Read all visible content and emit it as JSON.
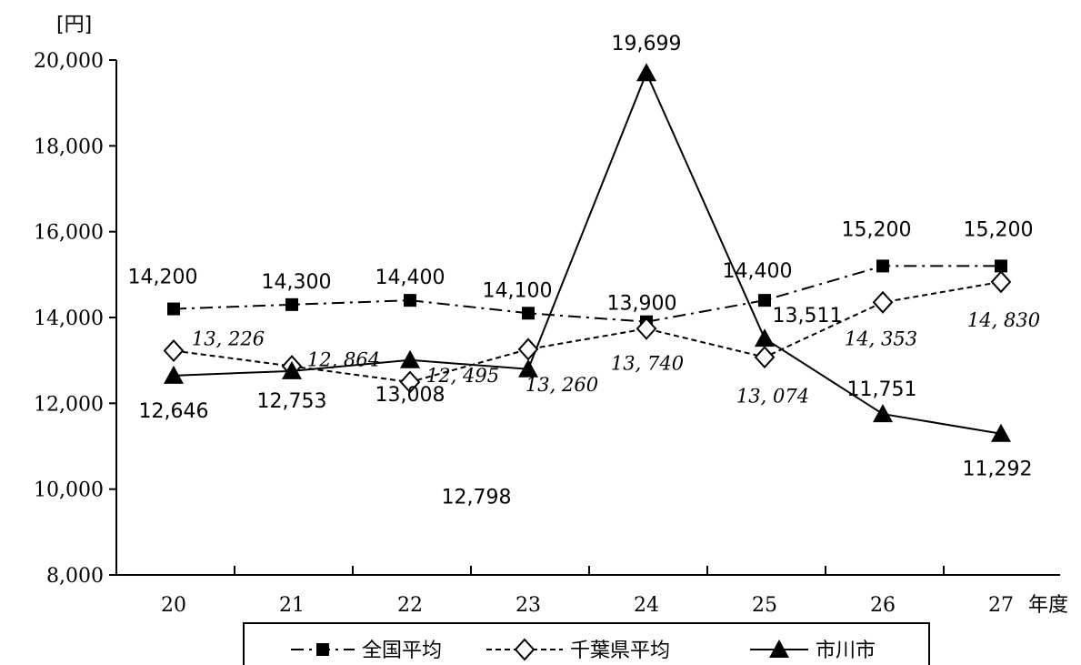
{
  "chart_data": {
    "type": "line",
    "y_unit": "[円]",
    "x_unit": "年度",
    "categories": [
      "20",
      "21",
      "22",
      "23",
      "24",
      "25",
      "26",
      "27"
    ],
    "ylim": [
      8000,
      20000
    ],
    "yticks": [
      8000,
      10000,
      12000,
      14000,
      16000,
      18000,
      20000
    ],
    "ytick_labels": [
      "8,000",
      "10,000",
      "12,000",
      "14,000",
      "16,000",
      "18,000",
      "20,000"
    ],
    "grid": false,
    "legend_placement": "bottom",
    "series": [
      {
        "name": "全国平均",
        "values": [
          14200,
          14300,
          14400,
          14100,
          13900,
          14400,
          15200,
          15200
        ],
        "labels": [
          "14,200",
          "14,300",
          "14,400",
          "14,100",
          "13,900",
          "14,400",
          "15,200",
          "15,200"
        ],
        "marker": "filled-square",
        "line_style": "dash-dot",
        "color": "#000000"
      },
      {
        "name": "千葉県平均",
        "values": [
          13226,
          12864,
          12495,
          13260,
          13740,
          13074,
          14353,
          14830
        ],
        "labels": [
          "13, 226",
          "12, 864",
          "12, 495",
          "13, 260",
          "13, 740",
          "13, 074",
          "14, 353",
          "14, 830"
        ],
        "marker": "open-diamond",
        "line_style": "dashed",
        "color": "#000000"
      },
      {
        "name": "市川市",
        "values": [
          12646,
          12753,
          13008,
          12798,
          19699,
          13511,
          11751,
          11292
        ],
        "labels": [
          "12,646",
          "12,753",
          "13,008",
          "12,798",
          "19,699",
          "13,511",
          "11,751",
          "11,292"
        ],
        "marker": "filled-triangle",
        "line_style": "solid",
        "color": "#000000"
      }
    ]
  }
}
